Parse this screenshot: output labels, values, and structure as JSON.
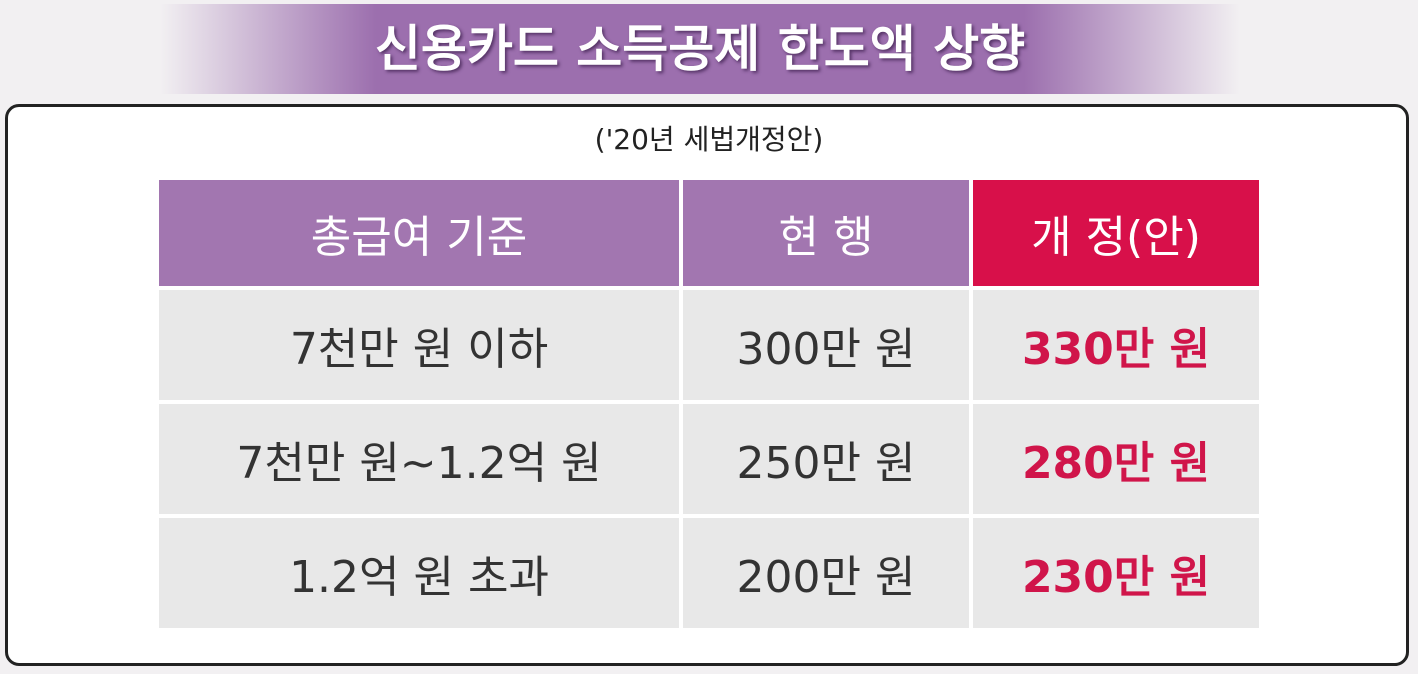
{
  "header": {
    "title": "신용카드 소득공제 한도액 상향"
  },
  "subtitle": "('20년 세법개정안)",
  "table": {
    "columns": [
      "총급여 기준",
      "현 행",
      "개 정(안)"
    ],
    "rows": [
      [
        "7천만 원 이하",
        "300만 원",
        "330만 원"
      ],
      [
        "7천만 원~1.2억 원",
        "250만 원",
        "280만 원"
      ],
      [
        "1.2억 원 초과",
        "200만 원",
        "230만 원"
      ]
    ]
  }
}
